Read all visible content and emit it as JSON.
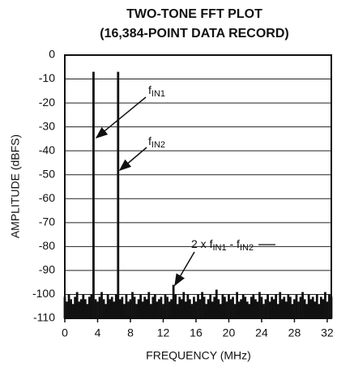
{
  "chart_data": {
    "type": "stem",
    "title": [
      "TWO-TONE FFT PLOT",
      "(16,384-POINT DATA RECORD)"
    ],
    "xlabel": "FREQUENCY (MHz)",
    "ylabel": "AMPLITUDE (dBFS)",
    "xlim": [
      0,
      32.5
    ],
    "ylim": [
      -110,
      0
    ],
    "xticks": [
      0,
      4,
      8,
      12,
      16,
      20,
      24,
      28,
      32
    ],
    "yticks": [
      0,
      -10,
      -20,
      -30,
      -40,
      -50,
      -60,
      -70,
      -80,
      -90,
      -100,
      -110
    ],
    "grid": true,
    "color": "#111111",
    "x": [
      0,
      0.25,
      0.5,
      0.75,
      1,
      1.25,
      1.5,
      1.75,
      2,
      2.25,
      2.5,
      2.75,
      3,
      3.25,
      3.5,
      3.75,
      4,
      4.25,
      4.5,
      4.75,
      5,
      5.25,
      5.5,
      5.75,
      6,
      6.25,
      6.5,
      6.75,
      7,
      7.25,
      7.5,
      7.75,
      8,
      8.25,
      8.5,
      8.75,
      9,
      9.25,
      9.5,
      9.75,
      10,
      10.25,
      10.5,
      10.75,
      11,
      11.25,
      11.5,
      11.75,
      12,
      12.25,
      12.5,
      12.75,
      13,
      13.25,
      13.5,
      13.75,
      14,
      14.25,
      14.5,
      14.75,
      15,
      15.25,
      15.5,
      15.75,
      16,
      16.25,
      16.5,
      16.75,
      17,
      17.25,
      17.5,
      17.75,
      18,
      18.25,
      18.5,
      18.75,
      19,
      19.25,
      19.5,
      19.75,
      20,
      20.25,
      20.5,
      20.75,
      21,
      21.25,
      21.5,
      21.75,
      22,
      22.25,
      22.5,
      22.75,
      23,
      23.25,
      23.5,
      23.75,
      24,
      24.25,
      24.5,
      24.75,
      25,
      25.25,
      25.5,
      25.75,
      26,
      26.25,
      26.5,
      26.75,
      27,
      27.25,
      27.5,
      27.75,
      28,
      28.25,
      28.5,
      28.75,
      29,
      29.25,
      29.5,
      29.75,
      30,
      30.25,
      30.5,
      30.75,
      31,
      31.25,
      31.5,
      31.75,
      32,
      32.25,
      32.5
    ],
    "values": [
      -101,
      -103,
      -100,
      -102,
      -104,
      -101,
      -99,
      -103,
      -102,
      -100,
      -102,
      -104,
      -101,
      -100,
      -7,
      -102,
      -103,
      -101,
      -99,
      -102,
      -104,
      -100,
      -102,
      -101,
      -103,
      -100,
      -7,
      -102,
      -101,
      -104,
      -100,
      -103,
      -102,
      -99,
      -101,
      -104,
      -102,
      -100,
      -103,
      -101,
      -102,
      -99,
      -104,
      -101,
      -100,
      -103,
      -102,
      -101,
      -104,
      -100,
      -101,
      -103,
      -102,
      -96,
      -100,
      -104,
      -101,
      -102,
      -99,
      -103,
      -100,
      -102,
      -104,
      -101,
      -103,
      -100,
      -102,
      -99,
      -101,
      -104,
      -102,
      -100,
      -103,
      -101,
      -98,
      -102,
      -104,
      -100,
      -101,
      -103,
      -100,
      -102,
      -101,
      -104,
      -99,
      -103,
      -102,
      -100,
      -101,
      -103,
      -104,
      -101,
      -100,
      -102,
      -103,
      -99,
      -101,
      -104,
      -102,
      -100,
      -103,
      -101,
      -102,
      -100,
      -104,
      -99,
      -102,
      -101,
      -103,
      -100,
      -101,
      -104,
      -102,
      -100,
      -103,
      -101,
      -99,
      -102,
      -104,
      -100,
      -102,
      -101,
      -103,
      -100,
      -104,
      -101,
      -102,
      -99,
      -103,
      -100,
      -101
    ],
    "annotations": [
      {
        "parts": [
          "f",
          "IN1"
        ]
      },
      {
        "parts": [
          "f",
          "IN2"
        ]
      },
      {
        "parts": [
          "2 x f",
          "IN1",
          " - f",
          "IN2"
        ]
      }
    ]
  }
}
